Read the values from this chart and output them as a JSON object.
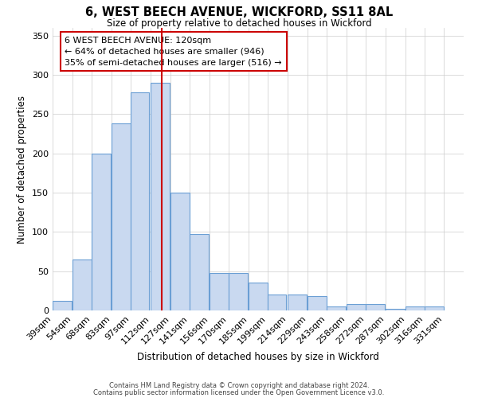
{
  "title": "6, WEST BEECH AVENUE, WICKFORD, SS11 8AL",
  "subtitle": "Size of property relative to detached houses in Wickford",
  "xlabel": "Distribution of detached houses by size in Wickford",
  "ylabel": "Number of detached properties",
  "bar_color": "#c9d9f0",
  "bar_edge_color": "#6b9fd4",
  "bar_left_edges": [
    39,
    54,
    68,
    83,
    97,
    112,
    127,
    141,
    156,
    170,
    185,
    199,
    214,
    229,
    243,
    258,
    272,
    287,
    302,
    316
  ],
  "bar_heights": [
    12,
    65,
    200,
    238,
    278,
    290,
    150,
    97,
    48,
    48,
    35,
    20,
    20,
    18,
    5,
    8,
    8,
    2,
    5,
    5
  ],
  "bin_width": 14,
  "tick_labels": [
    "39sqm",
    "54sqm",
    "68sqm",
    "83sqm",
    "97sqm",
    "112sqm",
    "127sqm",
    "141sqm",
    "156sqm",
    "170sqm",
    "185sqm",
    "199sqm",
    "214sqm",
    "229sqm",
    "243sqm",
    "258sqm",
    "272sqm",
    "287sqm",
    "302sqm",
    "316sqm",
    "331sqm"
  ],
  "vline_x": 120,
  "vline_color": "#cc0000",
  "ylim": [
    0,
    360
  ],
  "yticks": [
    0,
    50,
    100,
    150,
    200,
    250,
    300,
    350
  ],
  "annotation_text": "6 WEST BEECH AVENUE: 120sqm\n← 64% of detached houses are smaller (946)\n35% of semi-detached houses are larger (516) →",
  "annotation_box_color": "#ffffff",
  "annotation_box_edge_color": "#cc0000",
  "footer1": "Contains HM Land Registry data © Crown copyright and database right 2024.",
  "footer2": "Contains public sector information licensed under the Open Government Licence v3.0.",
  "background_color": "#ffffff",
  "grid_color": "#cccccc",
  "xlim_left": 39,
  "xlim_right": 345
}
